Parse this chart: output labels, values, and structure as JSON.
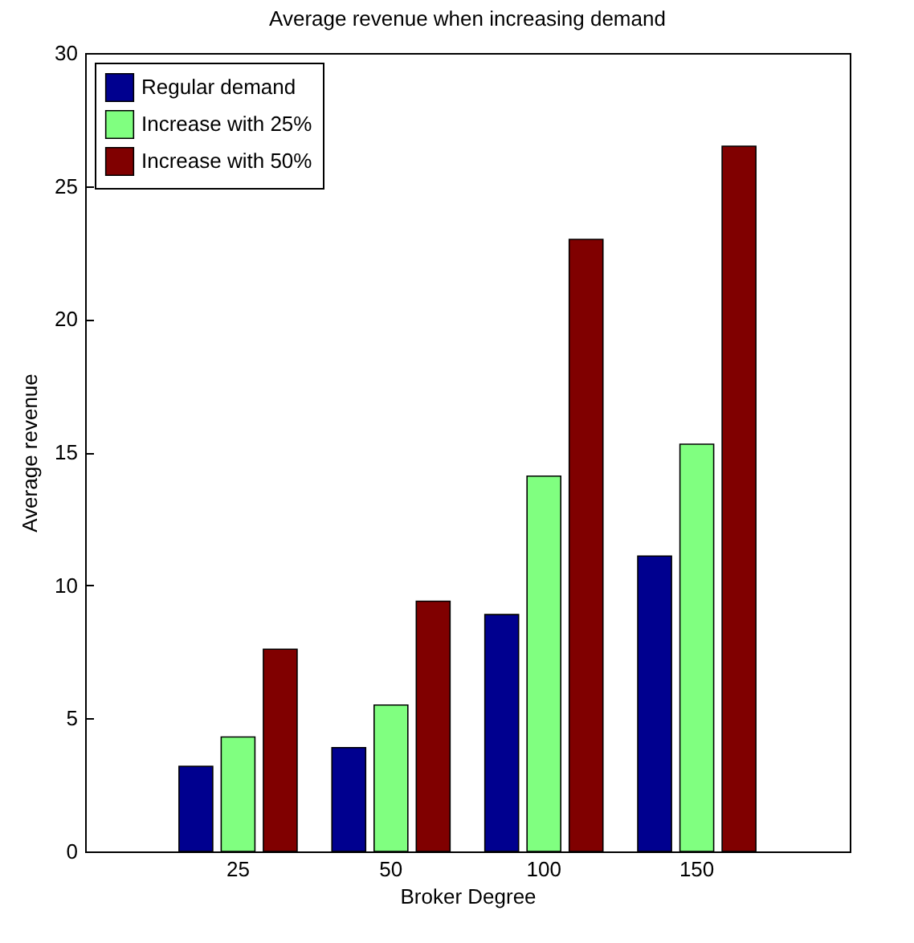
{
  "chart_data": {
    "type": "bar",
    "title": "Average revenue when increasing demand",
    "xlabel": "Broker Degree",
    "ylabel": "Average revenue",
    "categories": [
      "25",
      "50",
      "100",
      "150"
    ],
    "series": [
      {
        "name": "Regular demand",
        "color": "#00008f",
        "values": [
          3.2,
          3.9,
          8.9,
          11.1
        ]
      },
      {
        "name": "Increase with 25%",
        "color": "#80ff80",
        "values": [
          4.3,
          5.5,
          14.1,
          15.3
        ]
      },
      {
        "name": "Increase with 50%",
        "color": "#800000",
        "values": [
          7.6,
          9.4,
          23.0,
          26.5
        ]
      }
    ],
    "ylim": [
      0,
      30
    ],
    "yticks": [
      0,
      5,
      10,
      15,
      20,
      25,
      30
    ],
    "grid": false,
    "legend": "top left"
  }
}
